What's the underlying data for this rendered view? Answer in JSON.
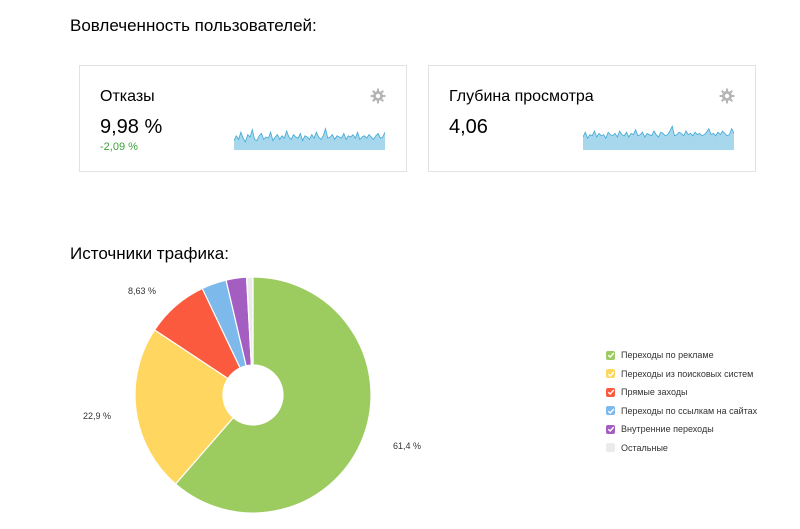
{
  "engagement": {
    "title": "Вовлеченность пользователей:",
    "cards": [
      {
        "title": "Отказы",
        "value": "9,98 %",
        "delta": "-2,09 %",
        "delta_color": "#3ba33b",
        "sparkline": [
          0.35,
          0.55,
          0.4,
          0.7,
          0.45,
          0.3,
          0.6,
          0.5,
          0.8,
          0.4,
          0.35,
          0.55,
          0.65,
          0.4,
          0.5,
          0.45,
          0.7,
          0.35,
          0.5,
          0.6,
          0.4,
          0.55,
          0.45,
          0.75,
          0.5,
          0.4,
          0.6,
          0.5,
          0.45,
          0.65,
          0.35,
          0.55,
          0.5,
          0.4,
          0.6,
          0.45,
          0.7,
          0.5,
          0.4,
          0.55,
          0.85,
          0.45,
          0.5,
          0.6,
          0.4,
          0.55,
          0.5,
          0.45,
          0.65,
          0.4,
          0.55,
          0.5,
          0.6,
          0.45,
          0.7,
          0.4,
          0.5,
          0.55,
          0.45,
          0.6,
          0.5,
          0.4,
          0.55,
          0.65,
          0.45,
          0.5,
          0.7
        ]
      },
      {
        "title": "Глубина просмотра",
        "value": "4,06",
        "delta": "",
        "sparkline": [
          0.5,
          0.7,
          0.45,
          0.6,
          0.55,
          0.75,
          0.5,
          0.65,
          0.55,
          0.6,
          0.45,
          0.7,
          0.6,
          0.55,
          0.65,
          0.5,
          0.75,
          0.6,
          0.55,
          0.7,
          0.5,
          0.65,
          0.6,
          0.8,
          0.55,
          0.6,
          0.7,
          0.5,
          0.65,
          0.6,
          0.55,
          0.75,
          0.6,
          0.5,
          0.7,
          0.65,
          0.55,
          0.6,
          0.75,
          0.95,
          0.55,
          0.6,
          0.7,
          0.65,
          0.55,
          0.75,
          0.6,
          0.65,
          0.55,
          0.7,
          0.6,
          0.65,
          0.55,
          0.6,
          0.7,
          0.85,
          0.6,
          0.65,
          0.55,
          0.7,
          0.6,
          0.75,
          0.65,
          0.55,
          0.6,
          0.85,
          0.65
        ]
      }
    ],
    "spark_fill": "#a6d7ec",
    "spark_line": "#3fa8d6"
  },
  "traffic": {
    "title": "Источники трафика:",
    "legend": [
      {
        "label": "Переходы по рекламе",
        "color": "#9ccb5f",
        "value": 61.4
      },
      {
        "label": "Переходы из поисковых систем",
        "color": "#ffd760",
        "value": 22.9
      },
      {
        "label": "Прямые заходы",
        "color": "#fc5a3f",
        "value": 8.63
      },
      {
        "label": "Переходы по ссылкам на сайтах",
        "color": "#7db9ea",
        "value": 3.4
      },
      {
        "label": "Внутренние переходы",
        "color": "#a45dc1",
        "value": 2.8
      },
      {
        "label": "Остальные",
        "color": "#ebebeb",
        "value": 0.87
      }
    ],
    "slice_labels": [
      "61,4 %",
      "22,9 %",
      "8,63 %"
    ]
  }
}
